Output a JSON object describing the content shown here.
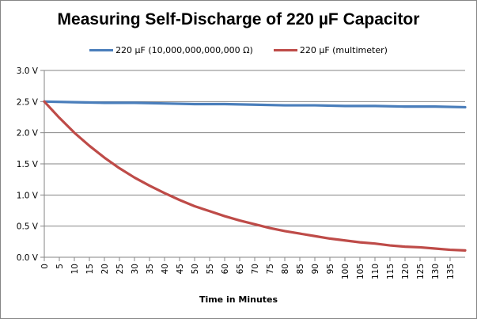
{
  "chart_data": {
    "type": "line",
    "title": "Measuring Self-Discharge of 220 µF Capacitor",
    "xlabel": "Time in Minutes",
    "ylabel": "",
    "xlim": [
      0,
      140
    ],
    "ylim": [
      0,
      3.0
    ],
    "x_ticks": [
      "0",
      "5",
      "10",
      "15",
      "20",
      "25",
      "30",
      "35",
      "40",
      "45",
      "50",
      "55",
      "60",
      "65",
      "70",
      "75",
      "80",
      "85",
      "90",
      "95",
      "100",
      "105",
      "110",
      "115",
      "120",
      "125",
      "130",
      "135"
    ],
    "y_ticks": [
      "0.0 V",
      "0.5 V",
      "1.0 V",
      "1.5 V",
      "2.0 V",
      "2.5 V",
      "3.0 V"
    ],
    "grid": "horizontal",
    "legend_position": "top",
    "series": [
      {
        "name": "220 µF (10,000,000,000,000 Ω)",
        "color": "#4a7ebb",
        "x": [
          0,
          10,
          20,
          30,
          40,
          50,
          60,
          70,
          80,
          90,
          100,
          110,
          120,
          130,
          140
        ],
        "y": [
          2.5,
          2.49,
          2.48,
          2.48,
          2.47,
          2.46,
          2.46,
          2.45,
          2.44,
          2.44,
          2.43,
          2.43,
          2.42,
          2.42,
          2.41
        ]
      },
      {
        "name": "220 µF (multimeter)",
        "color": "#be4b48",
        "x": [
          0,
          5,
          10,
          15,
          20,
          25,
          30,
          35,
          40,
          45,
          50,
          55,
          60,
          65,
          70,
          75,
          80,
          85,
          90,
          95,
          100,
          105,
          110,
          115,
          120,
          125,
          130,
          135,
          140
        ],
        "y": [
          2.5,
          2.24,
          2.0,
          1.79,
          1.6,
          1.43,
          1.28,
          1.15,
          1.03,
          0.92,
          0.82,
          0.74,
          0.66,
          0.59,
          0.53,
          0.47,
          0.42,
          0.38,
          0.34,
          0.3,
          0.27,
          0.24,
          0.22,
          0.19,
          0.17,
          0.16,
          0.14,
          0.12,
          0.11
        ]
      }
    ]
  }
}
